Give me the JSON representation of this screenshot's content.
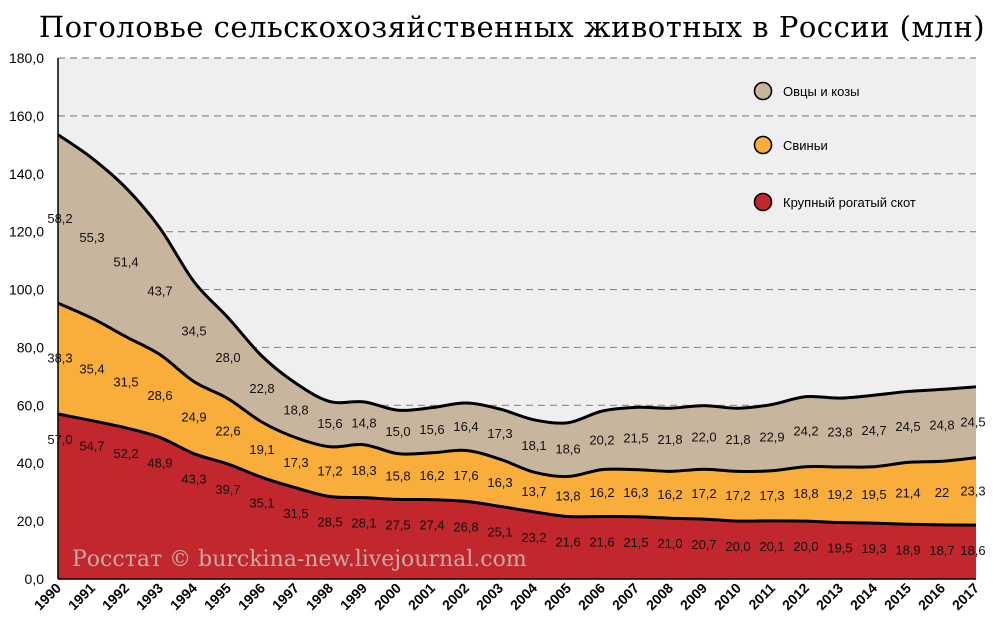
{
  "chart_data": {
    "type": "area",
    "title": "Поголовье сельскохозяйственных животных в России (млн)",
    "xlabel": "",
    "ylabel": "",
    "ylim": [
      0,
      180
    ],
    "yticks": [
      "0,0",
      "20,0",
      "40,0",
      "60,0",
      "80,0",
      "100,0",
      "120,0",
      "140,0",
      "160,0",
      "180,0"
    ],
    "grid": true,
    "stacked": true,
    "legend_position": "top-right",
    "x": [
      "1990",
      "1991",
      "1992",
      "1993",
      "1994",
      "1995",
      "1996",
      "1997",
      "1998",
      "1999",
      "2000",
      "2001",
      "2002",
      "2003",
      "2004",
      "2005",
      "2006",
      "2007",
      "2008",
      "2009",
      "2010",
      "2011",
      "2012",
      "2013",
      "2014",
      "2015",
      "2016",
      "2017"
    ],
    "series": [
      {
        "name": "Крупный рогатый скот",
        "color": "#c1272d",
        "values": [
          57.0,
          54.7,
          52.2,
          48.9,
          43.3,
          39.7,
          35.1,
          31.5,
          28.5,
          28.1,
          27.5,
          27.4,
          26.8,
          25.1,
          23.2,
          21.6,
          21.6,
          21.5,
          21.0,
          20.7,
          20.0,
          20.1,
          20.0,
          19.5,
          19.3,
          18.9,
          18.7,
          18.6
        ],
        "labels": [
          "57,0",
          "54,7",
          "52,2",
          "48,9",
          "43,3",
          "39,7",
          "35,1",
          "31,5",
          "28,5",
          "28,1",
          "27,5",
          "27,4",
          "26,8",
          "25,1",
          "23,2",
          "21,6",
          "21,6",
          "21,5",
          "21,0",
          "20,7",
          "20,0",
          "20,1",
          "20,0",
          "19,5",
          "19,3",
          "18,9",
          "18,7",
          "18,6"
        ]
      },
      {
        "name": "Свиньи",
        "color": "#f9ae3b",
        "values": [
          38.3,
          35.4,
          31.5,
          28.6,
          24.9,
          22.6,
          19.1,
          17.3,
          17.2,
          18.3,
          15.8,
          16.2,
          17.6,
          16.3,
          13.7,
          13.8,
          16.2,
          16.3,
          16.2,
          17.2,
          17.2,
          17.3,
          18.8,
          19.2,
          19.5,
          21.4,
          22,
          23.3
        ],
        "labels": [
          "38,3",
          "35,4",
          "31,5",
          "28,6",
          "24,9",
          "22,6",
          "19,1",
          "17,3",
          "17,2",
          "18,3",
          "15,8",
          "16,2",
          "17,6",
          "16,3",
          "13,7",
          "13,8",
          "16,2",
          "16,3",
          "16,2",
          "17,2",
          "17,2",
          "17,3",
          "18,8",
          "19,2",
          "19,5",
          "21,4",
          "22",
          "23,3"
        ]
      },
      {
        "name": "Овцы и козы",
        "color": "#c8b59e",
        "values": [
          58.2,
          55.3,
          51.4,
          43.7,
          34.5,
          28.0,
          22.8,
          18.8,
          15.6,
          14.8,
          15.0,
          15.6,
          16.4,
          17.3,
          18.1,
          18.6,
          20.2,
          21.5,
          21.8,
          22.0,
          21.8,
          22.9,
          24.2,
          23.8,
          24.7,
          24.5,
          24.8,
          24.5
        ],
        "labels": [
          "58,2",
          "55,3",
          "51,4",
          "43,7",
          "34,5",
          "28,0",
          "22,8",
          "18,8",
          "15,6",
          "14,8",
          "15,0",
          "15,6",
          "16,4",
          "17,3",
          "18,1",
          "18,6",
          "20,2",
          "21,5",
          "21,8",
          "22,0",
          "21,8",
          "22,9",
          "24,2",
          "23,8",
          "24,7",
          "24,5",
          "24,8",
          "24,5"
        ]
      }
    ],
    "legend": [
      "Овцы и козы",
      "Свиньи",
      "Крупный рогатый скот"
    ],
    "annotations": [
      "Росстат © burckina-new.livejournal.com"
    ]
  }
}
